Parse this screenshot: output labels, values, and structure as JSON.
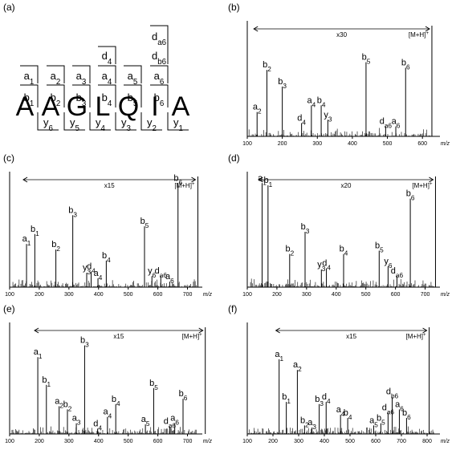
{
  "panel_labels": [
    "(a)",
    "(b)",
    "(c)",
    "(d)",
    "(e)",
    "(f)"
  ],
  "fragmentation": {
    "sequence": [
      "A",
      "A",
      "G",
      "L",
      "Q",
      "I",
      "A"
    ],
    "a_ions": [
      "a1",
      "a2",
      "a3",
      "a4",
      "a5",
      "a6"
    ],
    "b_ions": [
      "b1",
      "b2",
      "b3",
      "b4",
      "b5",
      "b6"
    ],
    "d_ions": [
      "d4",
      "da6",
      "db6"
    ],
    "y_ions": [
      "y6",
      "y5",
      "y4",
      "y3",
      "y2",
      "y1"
    ]
  },
  "chart_data": [
    {
      "panel": "(b)",
      "type": "bar",
      "xlabel": "m/z",
      "xlim": [
        100,
        650
      ],
      "xticks": [
        100,
        200,
        300,
        400,
        500,
        600
      ],
      "zoom_label": "x30",
      "precursor_label": "[M+H]+",
      "peaks": [
        {
          "x": 128,
          "y": 0.22,
          "label": "a2"
        },
        {
          "x": 156,
          "y": 0.6,
          "label": "b2"
        },
        {
          "x": 200,
          "y": 0.45,
          "label": "b3"
        },
        {
          "x": 255,
          "y": 0.12,
          "label": "d4"
        },
        {
          "x": 283,
          "y": 0.28,
          "label": "a4"
        },
        {
          "x": 311,
          "y": 0.28,
          "label": "b4"
        },
        {
          "x": 330,
          "y": 0.15,
          "label": "y3"
        },
        {
          "x": 439,
          "y": 0.67,
          "label": "b5"
        },
        {
          "x": 495,
          "y": 0.09,
          "label": "da6"
        },
        {
          "x": 524,
          "y": 0.09,
          "label": "a6"
        },
        {
          "x": 552,
          "y": 0.62,
          "label": "b6"
        },
        {
          "x": 627,
          "y": 1.0,
          "label": ""
        }
      ]
    },
    {
      "panel": "(c)",
      "type": "bar",
      "xlabel": "m/z",
      "xlim": [
        100,
        750
      ],
      "xticks": [
        100,
        200,
        300,
        400,
        500,
        600,
        700
      ],
      "zoom_label": "x15",
      "precursor_label": "[M+H]+",
      "peaks": [
        {
          "x": 157,
          "y": 0.39,
          "label": "a1"
        },
        {
          "x": 185,
          "y": 0.48,
          "label": "b1"
        },
        {
          "x": 256,
          "y": 0.34,
          "label": "b2"
        },
        {
          "x": 313,
          "y": 0.65,
          "label": "b3"
        },
        {
          "x": 360,
          "y": 0.13,
          "label": "y3"
        },
        {
          "x": 375,
          "y": 0.14,
          "label": "d4"
        },
        {
          "x": 398,
          "y": 0.08,
          "label": "a4"
        },
        {
          "x": 426,
          "y": 0.24,
          "label": "b4"
        },
        {
          "x": 555,
          "y": 0.55,
          "label": "b5"
        },
        {
          "x": 580,
          "y": 0.1,
          "label": "y6"
        },
        {
          "x": 610,
          "y": 0.1,
          "label": "da6"
        },
        {
          "x": 640,
          "y": 0.05,
          "label": "a6"
        },
        {
          "x": 668,
          "y": 0.94,
          "label": "b6"
        },
        {
          "x": 735,
          "y": 1.0,
          "label": ""
        }
      ]
    },
    {
      "panel": "(d)",
      "type": "bar",
      "xlabel": "m/z",
      "xlim": [
        100,
        750
      ],
      "xticks": [
        100,
        200,
        300,
        400,
        500,
        600,
        700
      ],
      "zoom_label": "x20",
      "precursor_label": "[M+H]+",
      "peaks": [
        {
          "x": 150,
          "y": 0.94,
          "label": "a1"
        },
        {
          "x": 170,
          "y": 0.92,
          "label": "b1"
        },
        {
          "x": 243,
          "y": 0.3,
          "label": "b2"
        },
        {
          "x": 295,
          "y": 0.5,
          "label": "b3"
        },
        {
          "x": 350,
          "y": 0.16,
          "label": "y3"
        },
        {
          "x": 367,
          "y": 0.17,
          "label": "d4"
        },
        {
          "x": 425,
          "y": 0.3,
          "label": "b4"
        },
        {
          "x": 545,
          "y": 0.33,
          "label": "b5"
        },
        {
          "x": 575,
          "y": 0.19,
          "label": "y6"
        },
        {
          "x": 605,
          "y": 0.1,
          "label": "da6"
        },
        {
          "x": 650,
          "y": 0.8,
          "label": "b6"
        },
        {
          "x": 735,
          "y": 1.0,
          "label": ""
        }
      ]
    },
    {
      "panel": "(e)",
      "type": "bar",
      "xlabel": "m/z",
      "xlim": [
        100,
        750
      ],
      "xticks": [
        100,
        200,
        300,
        400,
        500,
        600,
        700
      ],
      "zoom_label": "x15",
      "precursor_label": "[M+H]+",
      "peaks": [
        {
          "x": 195,
          "y": 0.72,
          "label": "a1"
        },
        {
          "x": 224,
          "y": 0.46,
          "label": "b1"
        },
        {
          "x": 267,
          "y": 0.26,
          "label": "a2"
        },
        {
          "x": 295,
          "y": 0.23,
          "label": "b2"
        },
        {
          "x": 325,
          "y": 0.1,
          "label": "a3"
        },
        {
          "x": 353,
          "y": 0.83,
          "label": "b3"
        },
        {
          "x": 397,
          "y": 0.05,
          "label": "d4"
        },
        {
          "x": 430,
          "y": 0.16,
          "label": "a4"
        },
        {
          "x": 458,
          "y": 0.28,
          "label": "b4"
        },
        {
          "x": 558,
          "y": 0.09,
          "label": "a5"
        },
        {
          "x": 586,
          "y": 0.43,
          "label": "b5"
        },
        {
          "x": 640,
          "y": 0.07,
          "label": "da6"
        },
        {
          "x": 657,
          "y": 0.1,
          "label": "a6"
        },
        {
          "x": 685,
          "y": 0.33,
          "label": "b6"
        },
        {
          "x": 760,
          "y": 1.0,
          "label": ""
        }
      ]
    },
    {
      "panel": "(f)",
      "type": "bar",
      "xlabel": "m/z",
      "xlim": [
        100,
        850
      ],
      "xticks": [
        100,
        200,
        300,
        400,
        500,
        600,
        700,
        800
      ],
      "zoom_label": "x15",
      "precursor_label": "[M+H]+",
      "peaks": [
        {
          "x": 224,
          "y": 0.7,
          "label": "a1"
        },
        {
          "x": 252,
          "y": 0.3,
          "label": "b1"
        },
        {
          "x": 295,
          "y": 0.6,
          "label": "a2"
        },
        {
          "x": 323,
          "y": 0.08,
          "label": "b2"
        },
        {
          "x": 352,
          "y": 0.06,
          "label": "a3"
        },
        {
          "x": 380,
          "y": 0.28,
          "label": "b3"
        },
        {
          "x": 407,
          "y": 0.3,
          "label": "d4"
        },
        {
          "x": 463,
          "y": 0.18,
          "label": "a4"
        },
        {
          "x": 491,
          "y": 0.15,
          "label": "b4"
        },
        {
          "x": 592,
          "y": 0.08,
          "label": "a5"
        },
        {
          "x": 620,
          "y": 0.1,
          "label": "b5"
        },
        {
          "x": 648,
          "y": 0.2,
          "label": "da6"
        },
        {
          "x": 664,
          "y": 0.35,
          "label": "db6"
        },
        {
          "x": 692,
          "y": 0.23,
          "label": "a6"
        },
        {
          "x": 720,
          "y": 0.15,
          "label": "b6"
        },
        {
          "x": 808,
          "y": 1.0,
          "label": ""
        }
      ]
    }
  ]
}
